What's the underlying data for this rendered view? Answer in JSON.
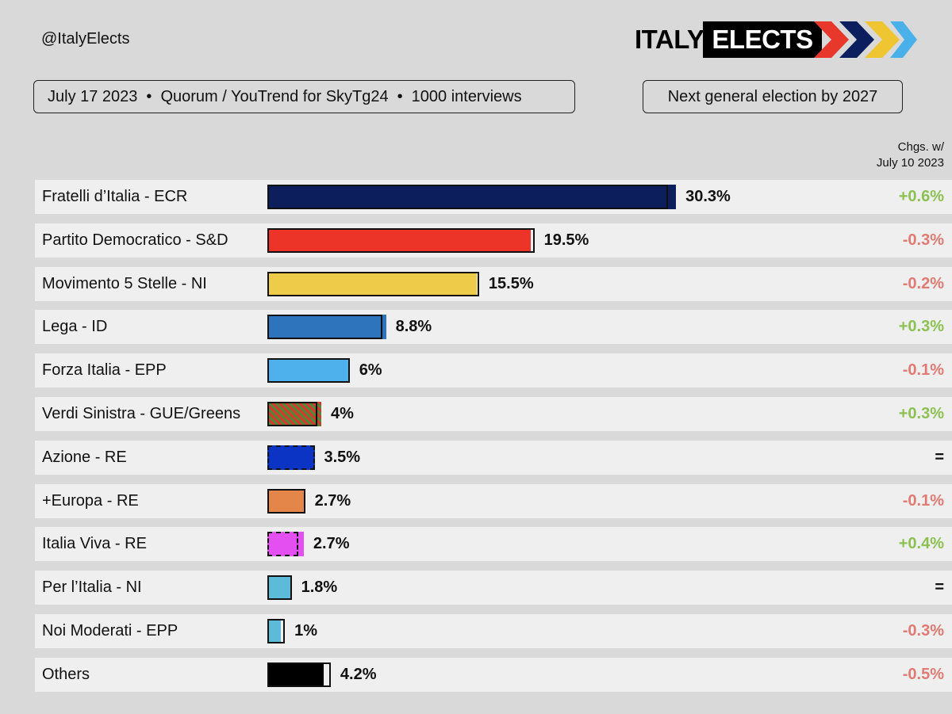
{
  "header": {
    "handle": "@ItalyElects",
    "logo_word1": "ITALY",
    "logo_word2": "ELECTS",
    "poll_date": "July 17 2023",
    "pollster": "Quorum / YouTrend for SkyTg24",
    "sample": "1000 interviews",
    "separator": "•",
    "next_election": "Next general election by 2027",
    "changes_header_line1": "Chgs. w/",
    "changes_header_line2": "July 10 2023"
  },
  "colors": {
    "background": "#d9d9d9",
    "row": "#efefef",
    "positive_change": "#8cc152",
    "negative_change": "#e07a72",
    "neutral_change": "#111111",
    "logo_chevrons": [
      "#e8382b",
      "#0b1f5e",
      "#efc531",
      "#4ab0ea"
    ]
  },
  "chart_data": {
    "type": "bar",
    "orientation": "horizontal",
    "unit": "%",
    "xlim": [
      0,
      32
    ],
    "categories": [
      "Fratelli d’Italia - ECR",
      "Partito Democratico - S&D",
      "Movimento 5 Stelle - NI",
      "Lega - ID",
      "Forza Italia - EPP",
      "Verdi Sinistra - GUE/Greens",
      "Azione - RE",
      "+Europa - RE",
      "Italia Viva - RE",
      "Per l’Italia - NI",
      "Noi Moderati - EPP",
      "Others"
    ],
    "values": [
      30.3,
      19.5,
      15.5,
      8.8,
      6,
      4,
      3.5,
      2.7,
      2.7,
      1.8,
      1,
      4.2
    ],
    "value_labels": [
      "30.3%",
      "19.5%",
      "15.5%",
      "8.8%",
      "6%",
      "4%",
      "3.5%",
      "2.7%",
      "2.7%",
      "1.8%",
      "1%",
      "4.2%"
    ],
    "previous_values": [
      29.7,
      19.8,
      15.7,
      8.5,
      6.1,
      3.7,
      3.5,
      2.8,
      2.3,
      1.8,
      1.3,
      4.7
    ],
    "changes": [
      "+0.6%",
      "-0.3%",
      "-0.2%",
      "+0.3%",
      "-0.1%",
      "+0.3%",
      "=",
      "-0.1%",
      "+0.4%",
      "=",
      "-0.3%",
      "-0.5%"
    ],
    "bar_colors": [
      "#0c1f5c",
      "#ec3528",
      "#eecc4a",
      "#2e74bc",
      "#4eb1ec",
      "#8a5a30",
      "#0b33c4",
      "#e4854a",
      "#e34ff0",
      "#5bbbd8",
      "#5bbbd8",
      "#000000"
    ],
    "bar_styles": [
      "solid",
      "solid",
      "solid",
      "solid",
      "solid",
      "striped",
      "solid",
      "solid",
      "solid",
      "solid",
      "solid",
      "solid"
    ],
    "previous_outline_styles": [
      "solid",
      "solid",
      "solid",
      "solid",
      "solid",
      "solid",
      "dashed",
      "solid",
      "dashed",
      "solid",
      "solid",
      "solid"
    ]
  }
}
